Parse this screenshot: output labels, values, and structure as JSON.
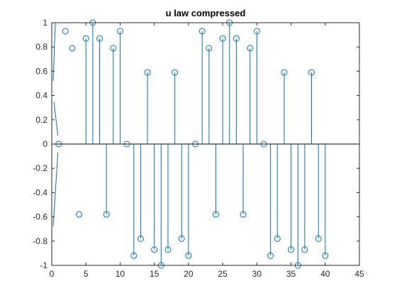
{
  "chart_data": {
    "type": "stem",
    "title": "u law compressed",
    "xlabel": "",
    "ylabel": "",
    "xlim": [
      0,
      45
    ],
    "ylim": [
      -1,
      1
    ],
    "xticks": [
      0,
      5,
      10,
      15,
      20,
      25,
      30,
      35,
      40,
      45
    ],
    "yticks": [
      -1,
      -0.8,
      -0.6,
      -0.4,
      -0.2,
      0,
      0.2,
      0.4,
      0.6,
      0.8,
      1
    ],
    "xtick_labels": [
      "0",
      "5",
      "10",
      "15",
      "20",
      "25",
      "30",
      "35",
      "40",
      "45"
    ],
    "ytick_labels": [
      "-1",
      "-0.8",
      "-0.6",
      "-0.4",
      "-0.2",
      "0",
      "0.2",
      "0.4",
      "0.6",
      "0.8",
      "1"
    ],
    "grid": false,
    "series": [
      {
        "x": [
          1,
          2,
          3,
          4,
          5,
          6,
          7,
          8,
          9,
          10,
          11,
          12,
          13,
          14,
          15,
          16,
          17,
          18,
          19,
          20,
          21,
          22,
          23,
          24,
          25,
          26,
          27,
          28,
          29,
          30,
          31,
          32,
          33,
          34,
          35,
          36,
          37,
          38,
          39,
          40
        ],
        "values": [
          0,
          0.93,
          0.79,
          -0.58,
          0.87,
          1.0,
          0.87,
          -0.58,
          0.79,
          0.93,
          0,
          -0.92,
          -0.78,
          0.59,
          -0.87,
          -1.0,
          -0.87,
          0.59,
          -0.78,
          -0.92,
          0,
          0.93,
          0.79,
          -0.58,
          0.87,
          1.0,
          0.87,
          -0.58,
          0.79,
          0.93,
          0,
          -0.92,
          -0.78,
          0.59,
          -0.87,
          -1.0,
          -0.87,
          0.59,
          -0.78,
          -0.92
        ],
        "stems_drawn_from_x": 5,
        "color": "#0072bd"
      }
    ],
    "axis_color": "#262626",
    "baseline_color": "#000000"
  }
}
